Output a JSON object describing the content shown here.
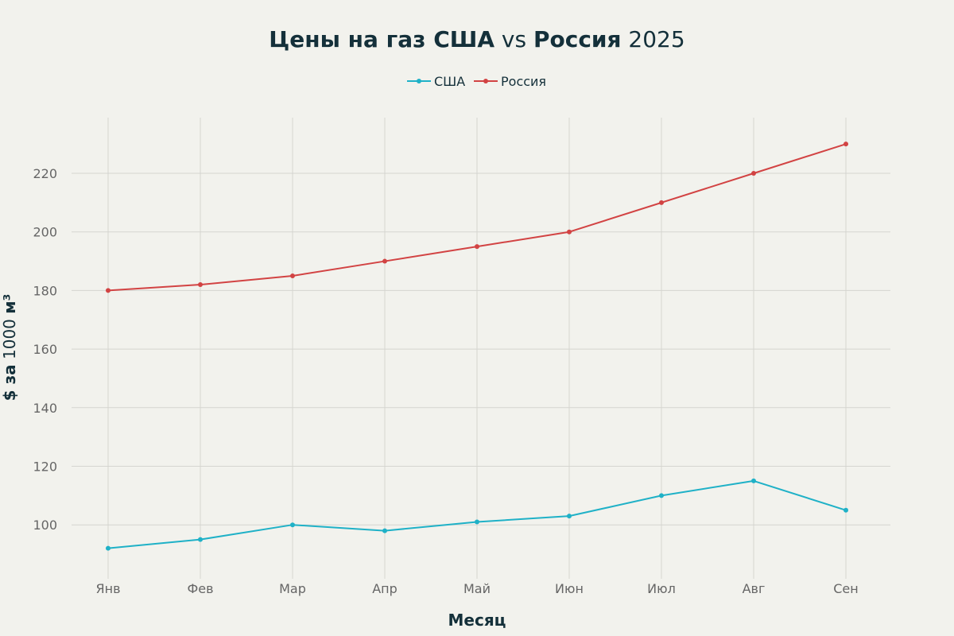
{
  "chart_data": {
    "type": "line",
    "title": "Цены на газ США vs Россия 2025",
    "title_parts": {
      "part1": "Цены на газ США",
      "part2": " vs ",
      "part3": "Россия",
      "part4": " 2025"
    },
    "xlabel": "Месяц",
    "ylabel": "$ за 1000 м³",
    "ylabel_parts": {
      "part1": "$ за",
      "part2": " 1000 ",
      "part3": "м³"
    },
    "categories": [
      "Янв",
      "Фев",
      "Мар",
      "Апр",
      "Май",
      "Июн",
      "Июл",
      "Авг",
      "Сен"
    ],
    "series": [
      {
        "name": "США",
        "color": "#1fb1c7",
        "values": [
          92,
          95,
          100,
          98,
          101,
          103,
          110,
          115,
          105
        ]
      },
      {
        "name": "Россия",
        "color": "#d24343",
        "values": [
          180,
          182,
          185,
          190,
          195,
          200,
          210,
          220,
          230
        ]
      }
    ],
    "yticks": [
      100,
      120,
      140,
      160,
      180,
      200,
      220
    ],
    "ylim": [
      81.6,
      239
    ],
    "grid": true,
    "legend_position": "top-center"
  }
}
